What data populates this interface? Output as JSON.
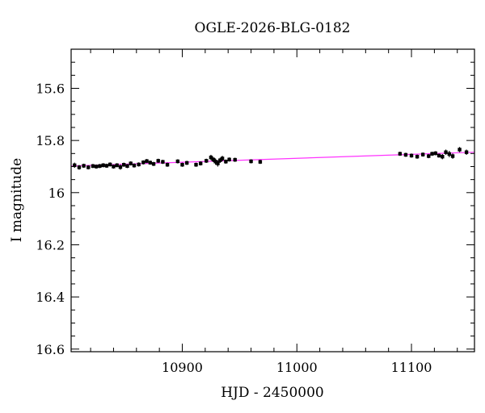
{
  "chart_data": {
    "type": "scatter",
    "title": "OGLE-2026-BLG-0182",
    "xlabel": "HJD - 2450000",
    "ylabel": "I magnitude",
    "xlim": [
      10803,
      11155
    ],
    "ylim": [
      16.61,
      15.45
    ],
    "y_inverted": true,
    "x_major_ticks": [
      10900,
      11000,
      11100
    ],
    "x_tick_labels": [
      "10900",
      "11000",
      "11100"
    ],
    "x_minor_step": 20,
    "y_major_ticks": [
      15.6,
      15.8,
      16.0,
      16.2,
      16.4,
      16.6
    ],
    "y_tick_labels": [
      "15.6",
      "15.8",
      "16",
      "16.2",
      "16.4",
      "16.6"
    ],
    "y_minor_step": 0.05,
    "grid": false,
    "colors": {
      "points": "#000000",
      "model": "#ff33ff"
    },
    "model_line": {
      "x": [
        10803,
        11155
      ],
      "y": [
        15.898,
        15.845
      ]
    },
    "series": [
      {
        "marker": "point-with-errorbar",
        "x": [
          10806,
          10810,
          10814,
          10818,
          10822,
          10825,
          10828,
          10831,
          10834,
          10837,
          10840,
          10843,
          10846,
          10849,
          10852,
          10855,
          10858,
          10862,
          10866,
          10869,
          10872,
          10875,
          10879,
          10883,
          10887,
          10896,
          10900,
          10904,
          10912,
          10916,
          10921,
          10925,
          10927,
          10929,
          10931,
          10933,
          10935,
          10938,
          10941,
          10946,
          10960,
          10968,
          11090,
          11095,
          11100,
          11105,
          11110,
          11115,
          11118,
          11121,
          11124,
          11127,
          11130,
          11133,
          11136,
          11142,
          11148
        ],
        "y": [
          15.895,
          15.903,
          15.897,
          15.903,
          15.898,
          15.9,
          15.898,
          15.895,
          15.897,
          15.892,
          15.9,
          15.895,
          15.902,
          15.893,
          15.898,
          15.888,
          15.896,
          15.892,
          15.884,
          15.879,
          15.885,
          15.89,
          15.878,
          15.882,
          15.893,
          15.88,
          15.893,
          15.886,
          15.893,
          15.888,
          15.878,
          15.865,
          15.873,
          15.881,
          15.888,
          15.876,
          15.869,
          15.881,
          15.873,
          15.874,
          15.88,
          15.882,
          15.851,
          15.855,
          15.858,
          15.862,
          15.854,
          15.86,
          15.851,
          15.849,
          15.858,
          15.862,
          15.845,
          15.852,
          15.86,
          15.835,
          15.845
        ],
        "err": [
          0.01,
          0.009,
          0.008,
          0.008,
          0.008,
          0.008,
          0.008,
          0.008,
          0.008,
          0.008,
          0.008,
          0.008,
          0.01,
          0.008,
          0.008,
          0.008,
          0.008,
          0.008,
          0.008,
          0.008,
          0.008,
          0.008,
          0.008,
          0.008,
          0.008,
          0.008,
          0.008,
          0.008,
          0.008,
          0.008,
          0.008,
          0.01,
          0.01,
          0.012,
          0.012,
          0.01,
          0.01,
          0.008,
          0.008,
          0.008,
          0.008,
          0.008,
          0.008,
          0.008,
          0.008,
          0.008,
          0.008,
          0.008,
          0.008,
          0.008,
          0.008,
          0.01,
          0.01,
          0.012,
          0.01,
          0.01,
          0.01
        ]
      }
    ]
  }
}
